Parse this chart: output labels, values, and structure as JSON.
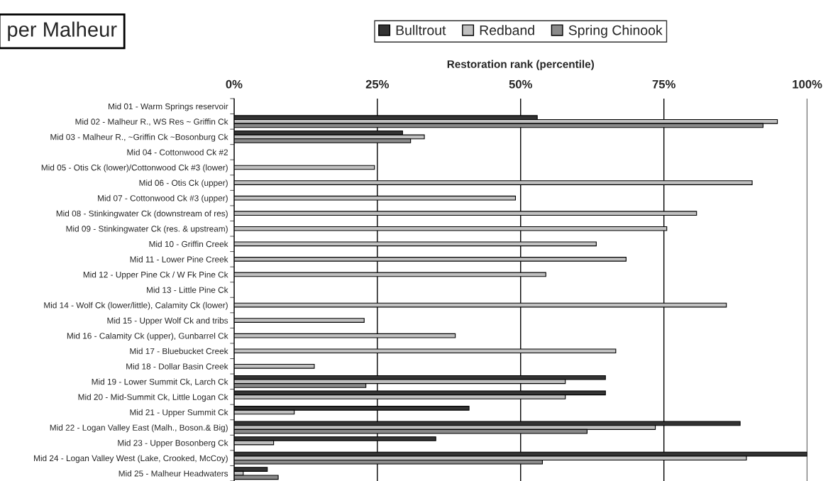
{
  "chart_data": {
    "type": "bar",
    "orientation": "horizontal",
    "title": "per Malheur",
    "xlabel": "Restoration rank (percentile)",
    "categories": [
      "Mid 01 - Warm Springs reservoir",
      "Mid 02 - Malheur R., WS Res ~ Griffin Ck",
      "Mid 03 - Malheur R., ~Griffin Ck ~Bosonburg Ck",
      "Mid 04 - Cottonwood Ck #2",
      "Mid 05 - Otis Ck (lower)/Cottonwood Ck #3 (lower)",
      "Mid 06 - Otis Ck (upper)",
      "Mid 07 - Cottonwood Ck #3 (upper)",
      "Mid 08 - Stinkingwater Ck (downstream of res)",
      "Mid 09 - Stinkingwater Ck (res. & upstream)",
      "Mid 10 - Griffin Creek",
      "Mid 11 - Lower Pine Creek",
      "Mid 12 - Upper Pine Ck / W Fk Pine Ck",
      "Mid 13 - Little Pine Ck",
      "Mid 14 - Wolf Ck (lower/little), Calamity Ck (lower)",
      "Mid 15 - Upper Wolf Ck and tribs",
      "Mid 16 - Calamity Ck (upper), Gunbarrel Ck",
      "Mid 17 - Bluebucket Creek",
      "Mid 18 - Dollar Basin Creek",
      "Mid 19 - Lower Summit Ck, Larch Ck",
      "Mid 20 - Mid-Summit Ck, Little Logan Ck",
      "Mid 21 - Upper Summit Ck",
      "Mid 22 - Logan Valley East (Malh., Boson.& Big)",
      "Mid 23 - Upper Bosonberg Ck",
      "Mid 24 - Logan Valley West (Lake, Crooked, McCoy)",
      "Mid 25 - Malheur Headwaters"
    ],
    "series": [
      {
        "name": "Bulltrout",
        "color": "#333333",
        "values": [
          null,
          52.9,
          29.4,
          null,
          null,
          null,
          null,
          null,
          null,
          null,
          null,
          null,
          null,
          null,
          null,
          null,
          null,
          null,
          64.8,
          64.8,
          41.0,
          88.3,
          35.2,
          100,
          5.8
        ]
      },
      {
        "name": "Redband",
        "color": "#c0c0c0",
        "values": [
          null,
          94.8,
          33.2,
          null,
          24.5,
          90.4,
          49.1,
          80.7,
          75.5,
          63.2,
          68.4,
          54.4,
          null,
          85.9,
          22.7,
          38.6,
          66.6,
          14.0,
          57.8,
          57.8,
          10.5,
          73.5,
          6.9,
          89.4,
          1.6
        ]
      },
      {
        "name": "Spring Chinook",
        "color": "#8a8a8a",
        "values": [
          null,
          92.3,
          30.8,
          null,
          null,
          null,
          null,
          null,
          null,
          null,
          null,
          null,
          null,
          null,
          null,
          null,
          null,
          null,
          23.0,
          null,
          null,
          61.6,
          null,
          53.8,
          7.7
        ]
      }
    ],
    "xlim": [
      0,
      100
    ],
    "xticks": [
      {
        "value": 0,
        "label": "0%"
      },
      {
        "value": 25,
        "label": "25%"
      },
      {
        "value": 50,
        "label": "50%"
      },
      {
        "value": 75,
        "label": "75%"
      },
      {
        "value": 100,
        "label": "100%"
      }
    ],
    "grid": "x",
    "legend": "top"
  }
}
